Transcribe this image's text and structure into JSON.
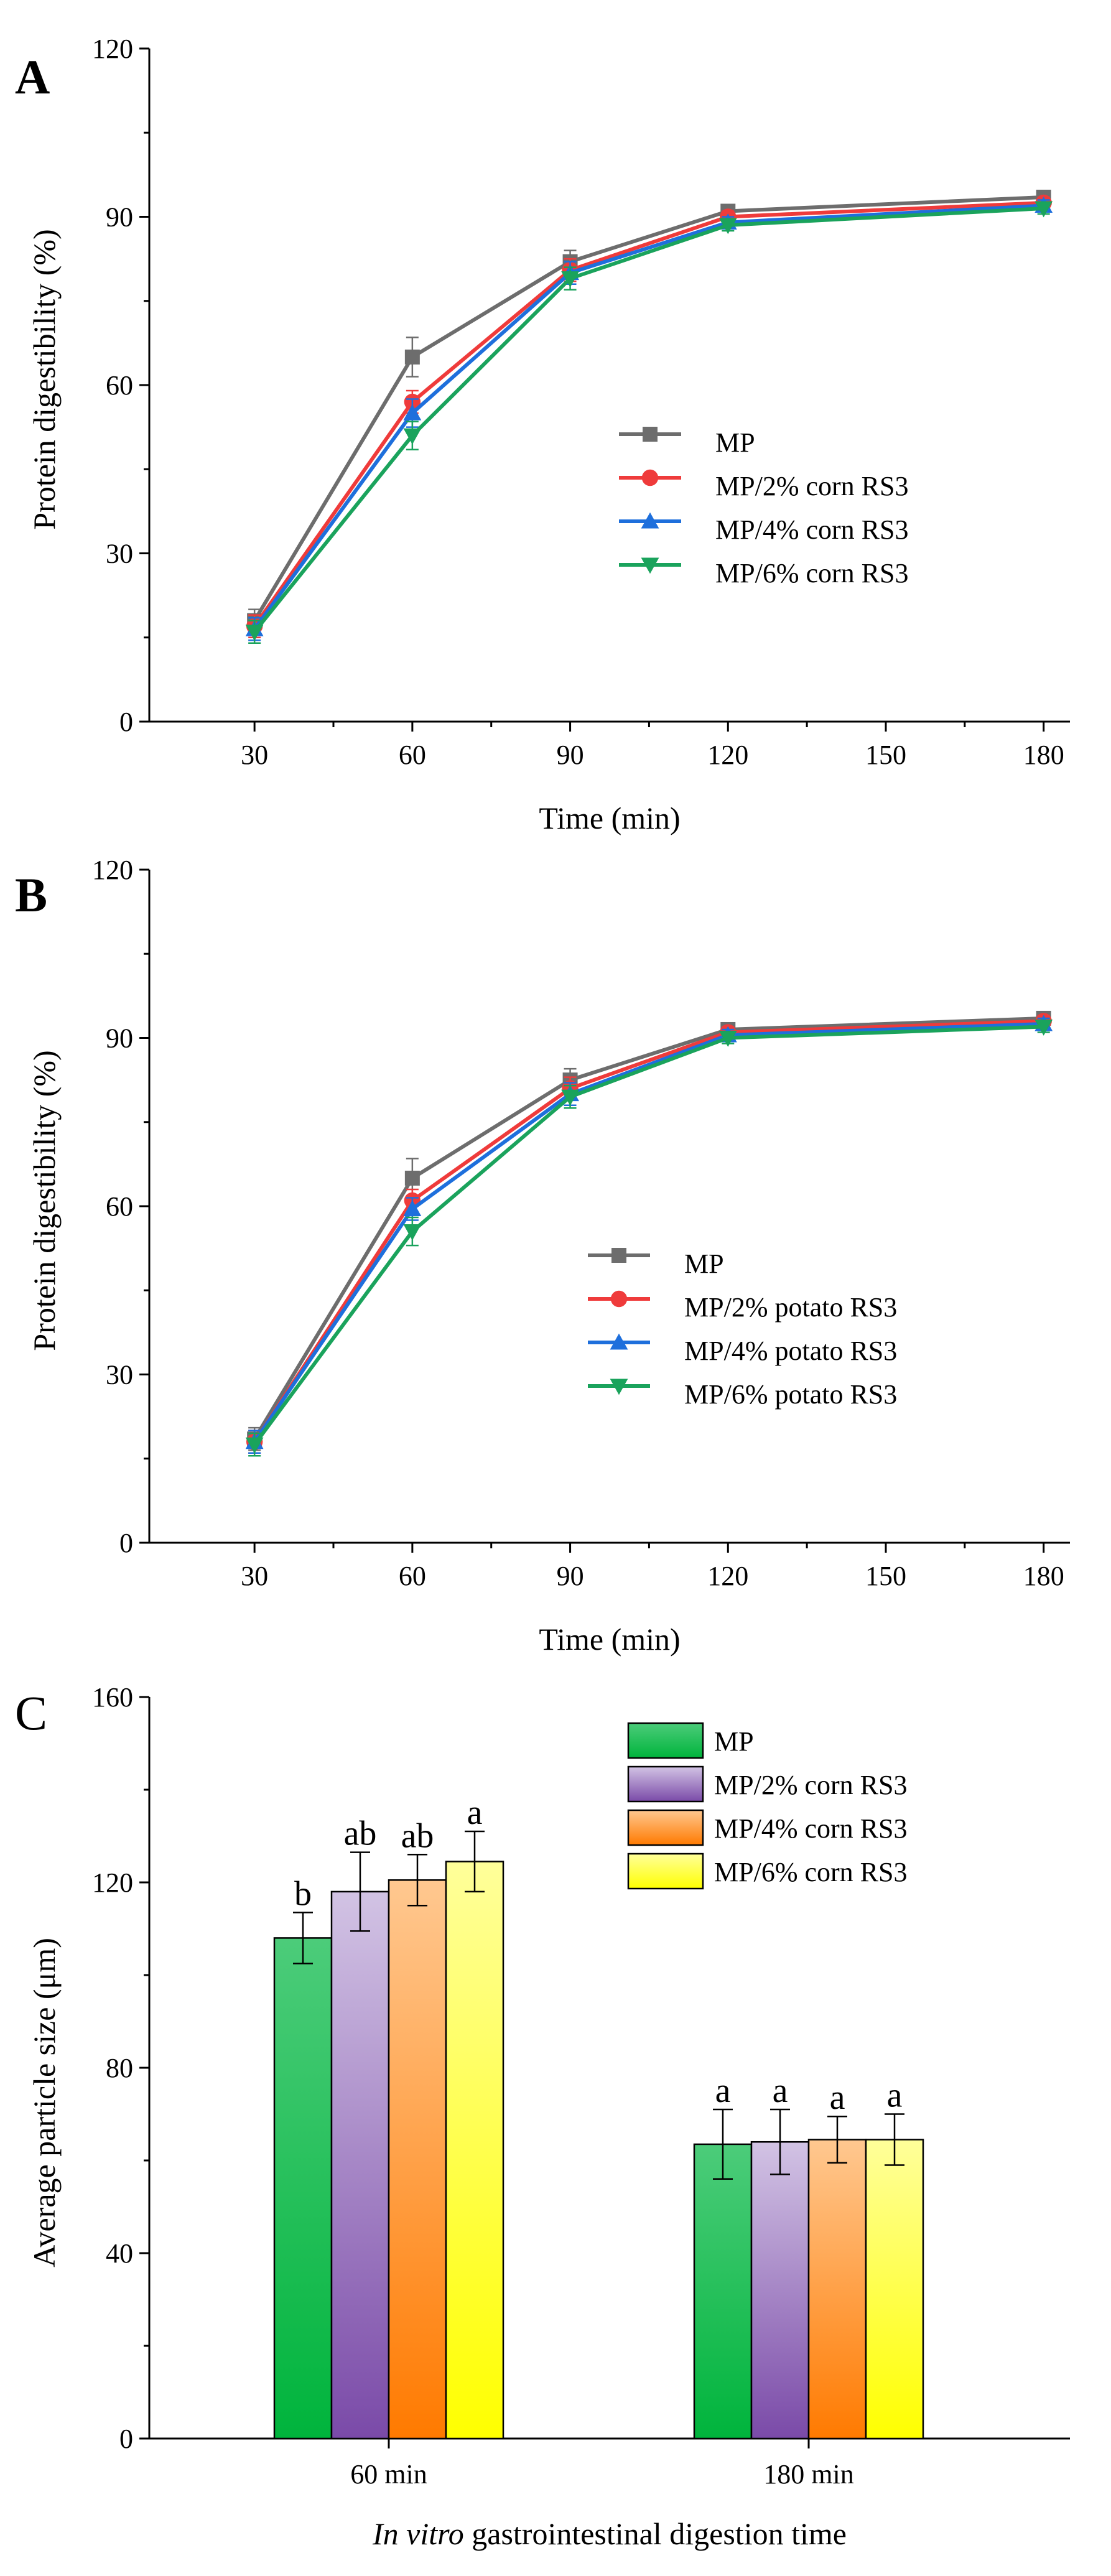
{
  "chart_data": [
    {
      "panel_label": "A",
      "type": "line",
      "x": [
        30,
        60,
        90,
        120,
        150,
        180
      ],
      "x_ticks": [
        "30",
        "60",
        "90",
        "120",
        "150",
        "180"
      ],
      "y_ticks": [
        "0",
        "30",
        "60",
        "90",
        "120"
      ],
      "xlabel": "Time (min)",
      "ylabel": "Protein digestibility (%)",
      "xlim": [
        10,
        185
      ],
      "ylim": [
        0,
        120
      ],
      "legend_position": "right-middle",
      "series": [
        {
          "name": "MP",
          "marker": "square",
          "color": "#6d6d6d",
          "x": [
            30,
            60,
            90,
            120,
            180
          ],
          "values": [
            18,
            65,
            82,
            91,
            93.5
          ],
          "errors": [
            2,
            3.5,
            2,
            1,
            1
          ]
        },
        {
          "name": "MP/2% corn RS3",
          "marker": "circle",
          "color": "#ef3b3b",
          "x": [
            30,
            60,
            90,
            120,
            180
          ],
          "values": [
            17,
            57,
            80.5,
            90,
            92.5
          ],
          "errors": [
            2,
            2,
            2,
            1,
            1
          ]
        },
        {
          "name": "MP/4% corn RS3",
          "marker": "triangle-up",
          "color": "#1e6fdc",
          "x": [
            30,
            60,
            90,
            120,
            180
          ],
          "values": [
            16.5,
            55,
            80,
            89,
            92
          ],
          "errors": [
            2,
            2.5,
            2,
            1,
            1
          ]
        },
        {
          "name": "MP/6% corn RS3",
          "marker": "triangle-down",
          "color": "#1aa35c",
          "x": [
            30,
            60,
            90,
            120,
            180
          ],
          "values": [
            16,
            51,
            79,
            88.5,
            91.5
          ],
          "errors": [
            2,
            2.5,
            2,
            1,
            1
          ]
        }
      ]
    },
    {
      "panel_label": "B",
      "type": "line",
      "x": [
        30,
        60,
        90,
        120,
        150,
        180
      ],
      "x_ticks": [
        "30",
        "60",
        "90",
        "120",
        "150",
        "180"
      ],
      "y_ticks": [
        "0",
        "30",
        "60",
        "90",
        "120"
      ],
      "xlabel": "Time (min)",
      "ylabel": "Protein digestibility (%)",
      "xlim": [
        10,
        185
      ],
      "ylim": [
        0,
        120
      ],
      "legend_position": "right-middle",
      "series": [
        {
          "name": "MP",
          "marker": "square",
          "color": "#6d6d6d",
          "x": [
            30,
            60,
            90,
            120,
            180
          ],
          "values": [
            18.5,
            65,
            82.5,
            91.5,
            93.5
          ],
          "errors": [
            2,
            3.5,
            2,
            1,
            1
          ]
        },
        {
          "name": "MP/2% potato RS3",
          "marker": "circle",
          "color": "#ef3b3b",
          "x": [
            30,
            60,
            90,
            120,
            180
          ],
          "values": [
            18,
            61,
            81,
            91,
            93
          ],
          "errors": [
            2,
            2,
            2,
            1,
            1
          ]
        },
        {
          "name": "MP/4% potato RS3",
          "marker": "triangle-up",
          "color": "#1e6fdc",
          "x": [
            30,
            60,
            90,
            120,
            180
          ],
          "values": [
            18,
            59.5,
            80,
            90.5,
            92.5
          ],
          "errors": [
            2,
            2,
            2,
            1,
            1
          ]
        },
        {
          "name": "MP/6% potato RS3",
          "marker": "triangle-down",
          "color": "#1aa35c",
          "x": [
            30,
            60,
            90,
            120,
            180
          ],
          "values": [
            17.5,
            55.5,
            79.5,
            90,
            92
          ],
          "errors": [
            2,
            2.5,
            2,
            1,
            1
          ]
        }
      ]
    },
    {
      "panel_label": "C",
      "type": "bar",
      "categories": [
        "60 min",
        "180 min"
      ],
      "y_ticks": [
        "0",
        "40",
        "80",
        "120",
        "160"
      ],
      "xlabel_italic": "In vitro",
      "xlabel_rest": " gastrointestinal digestion time",
      "ylabel": "Average particle size (μm)",
      "ylim": [
        0,
        160
      ],
      "legend_position": "top-right",
      "series": [
        {
          "name": "MP",
          "values": [
            108,
            63.5
          ],
          "errors": [
            5.5,
            7.5
          ],
          "letters": [
            "b",
            "a"
          ],
          "color_top": "#4ccc7a",
          "color_bottom": "#00b43c"
        },
        {
          "name": "MP/2% corn RS3",
          "values": [
            118,
            64
          ],
          "errors": [
            8.5,
            7
          ],
          "letters": [
            "ab",
            "a"
          ],
          "color_top": "#d2c3e4",
          "color_bottom": "#7a4aa8"
        },
        {
          "name": "MP/4% corn RS3",
          "values": [
            120.5,
            64.5
          ],
          "errors": [
            5.5,
            5
          ],
          "letters": [
            "ab",
            "a"
          ],
          "color_top": "#ffc890",
          "color_bottom": "#ff7a00"
        },
        {
          "name": "MP/6% corn RS3",
          "values": [
            124.5,
            64.5
          ],
          "errors": [
            6.5,
            5.5
          ],
          "letters": [
            "a",
            "a"
          ],
          "color_top": "#ffff9a",
          "color_bottom": "#ffff00"
        }
      ]
    }
  ]
}
